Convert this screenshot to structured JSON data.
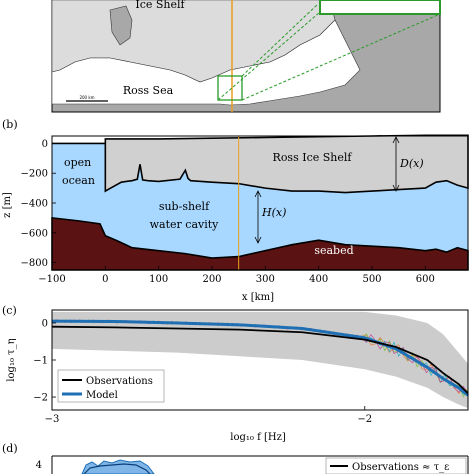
{
  "panels": {
    "a": {
      "ice_shelf_label": "Ice Shelf",
      "ross_sea_label": "Ross Sea",
      "scalebar_label": "200 km"
    },
    "b": {
      "panel_label": "(b)",
      "ylabel": "z [m]",
      "xlabel": "x [km]",
      "xticks": [
        "−100",
        "0",
        "100",
        "200",
        "300",
        "400",
        "500",
        "600"
      ],
      "yticks": [
        "0",
        "−200",
        "−400",
        "−600",
        "−800"
      ],
      "labels": {
        "open_ocean_1": "open",
        "open_ocean_2": "ocean",
        "ice_shelf": "Ross Ice Shelf",
        "cavity_1": "sub-shelf",
        "cavity_2": "water cavity",
        "seabed": "seabed",
        "D": "D(x)",
        "H": "H(x)"
      },
      "colors": {
        "ice": "#d0d0d0",
        "water": "#a8d8ff",
        "seabed": "#5a1212"
      }
    },
    "c": {
      "panel_label": "(c)",
      "ylabel": "log₁₀ τ_η",
      "xlabel": "log₁₀ f [Hz]",
      "xticks": [
        "−3",
        "−2"
      ],
      "yticks": [
        "0",
        "−1",
        "−2"
      ],
      "legend": [
        "Observations",
        "Model"
      ],
      "colors": {
        "observations": "#000000",
        "model": "#1f6fb4",
        "envelope": "#cccccc"
      }
    },
    "d": {
      "panel_label": "(d)",
      "legend": [
        "Observations ≈ τ_ε"
      ],
      "ytick_partial": "4"
    }
  },
  "chart_data": [
    {
      "type": "area",
      "panel": "b",
      "xlabel": "x [km]",
      "ylabel": "z [m]",
      "xlim": [
        -100,
        680
      ],
      "ylim": [
        -850,
        50
      ],
      "ice_top_x": [
        0,
        50,
        100,
        200,
        300,
        400,
        500,
        600,
        680
      ],
      "ice_top": [
        30,
        30,
        30,
        35,
        40,
        45,
        50,
        55,
        55
      ],
      "ice_base_x": [
        0,
        10,
        30,
        50,
        60,
        65,
        70,
        80,
        100,
        140,
        150,
        155,
        160,
        200,
        250,
        300,
        350,
        400,
        450,
        500,
        550,
        600,
        620,
        640,
        660,
        680
      ],
      "ice_base": [
        -320,
        -300,
        -260,
        -250,
        -240,
        -140,
        -245,
        -250,
        -255,
        -240,
        -180,
        -235,
        -250,
        -260,
        -270,
        -300,
        -320,
        -320,
        -330,
        -320,
        -310,
        -300,
        -260,
        -250,
        -280,
        -300
      ],
      "seabed_x": [
        -100,
        -50,
        -10,
        0,
        20,
        50,
        100,
        150,
        200,
        250,
        300,
        350,
        400,
        450,
        500,
        550,
        600,
        620,
        640,
        660,
        680
      ],
      "seabed": [
        -500,
        -520,
        -540,
        -620,
        -650,
        -700,
        -720,
        -740,
        -770,
        -760,
        -720,
        -680,
        -650,
        -680,
        -690,
        -700,
        -720,
        -710,
        -730,
        -700,
        -720
      ]
    },
    {
      "type": "line",
      "panel": "c",
      "xlabel": "log₁₀ f [Hz]",
      "ylabel": "log₁₀ τ_η",
      "xlim": [
        -3.0,
        -1.67
      ],
      "ylim": [
        -2.35,
        0.35
      ],
      "x": [
        -3.0,
        -2.8,
        -2.6,
        -2.4,
        -2.2,
        -2.0,
        -1.9,
        -1.8,
        -1.75,
        -1.7,
        -1.67
      ],
      "series": [
        {
          "name": "Observations",
          "values": [
            -0.1,
            -0.12,
            -0.15,
            -0.18,
            -0.25,
            -0.45,
            -0.65,
            -1.0,
            -1.35,
            -1.65,
            -1.9
          ]
        },
        {
          "name": "Model",
          "values": [
            0.05,
            0.04,
            0.0,
            -0.05,
            -0.15,
            -0.4,
            -0.7,
            -1.2,
            -1.5,
            -1.75,
            -1.95
          ]
        }
      ],
      "envelope_upper": [
        0.3,
        0.3,
        0.3,
        0.3,
        0.3,
        0.3,
        0.2,
        0.0,
        -0.3,
        -0.8,
        -1.1
      ],
      "envelope_lower": [
        -0.7,
        -0.75,
        -0.8,
        -0.9,
        -1.0,
        -1.25,
        -1.45,
        -1.75,
        -2.0,
        -2.2,
        -2.3
      ]
    }
  ]
}
